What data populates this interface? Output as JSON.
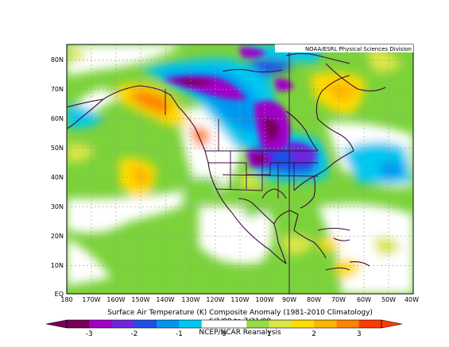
{
  "map": {
    "credit": "NOAA/ESRL Physical Sciences Division",
    "title": "Surface Air Temperature (K) Composite Anomaly (1981-2010 Climatology)",
    "date_range": "6/1/09 to 7/31/09",
    "source": "NCEP/NCAR Reanalysis",
    "lat_ticks": [
      "EQ",
      "10N",
      "20N",
      "30N",
      "40N",
      "50N",
      "60N",
      "70N",
      "80N"
    ],
    "lon_ticks": [
      "180",
      "170W",
      "160W",
      "150W",
      "140W",
      "130W",
      "120W",
      "110W",
      "100W",
      "90W",
      "80W",
      "70W",
      "60W",
      "50W",
      "40W"
    ],
    "colorbar": {
      "labels": [
        "-3",
        "-2",
        "-1",
        "0",
        "1",
        "2",
        "3"
      ],
      "colors": [
        "#78005a",
        "#a000c8",
        "#6e28dc",
        "#1e50e6",
        "#0096f0",
        "#00c8f0",
        "#ffffff",
        "#ffffff",
        "#96dc46",
        "#dce646",
        "#ffdc00",
        "#ffb400",
        "#ff8200",
        "#ff3c00"
      ]
    }
  },
  "chart_data": {
    "type": "heatmap",
    "title": "Surface Air Temperature (K) Composite Anomaly (1981-2010 Climatology)",
    "subtitle": "6/1/09 to 7/31/09",
    "xlabel": "",
    "ylabel": "",
    "xlim": [
      -180,
      -40
    ],
    "ylim": [
      0,
      85
    ],
    "color_range": [
      -3,
      3
    ],
    "units": "K",
    "regions": [
      {
        "lon": [
          -160,
          -135
        ],
        "lat": [
          65,
          75
        ],
        "value": -2.5
      },
      {
        "lon": [
          -120,
          -100
        ],
        "lat": [
          68,
          76
        ],
        "value": -2.0
      },
      {
        "lon": [
          -105,
          -85
        ],
        "lat": [
          50,
          62
        ],
        "value": -2.5
      },
      {
        "lon": [
          -100,
          -80
        ],
        "lat": [
          42,
          50
        ],
        "value": -2.0
      },
      {
        "lon": [
          -160,
          -140
        ],
        "lat": [
          55,
          66
        ],
        "value": 2.0
      },
      {
        "lon": [
          -125,
          -118
        ],
        "lat": [
          48,
          55
        ],
        "value": 2.0
      },
      {
        "lon": [
          -85,
          -65
        ],
        "lat": [
          60,
          72
        ],
        "value": 2.0
      },
      {
        "lon": [
          -150,
          -140
        ],
        "lat": [
          36,
          44
        ],
        "value": 1.5
      },
      {
        "lon": [
          -178,
          -165
        ],
        "lat": [
          58,
          66
        ],
        "value": -1.5
      },
      {
        "lon": [
          -170,
          -155
        ],
        "lat": [
          38,
          48
        ],
        "value": 1.0
      },
      {
        "lon": [
          -60,
          -45
        ],
        "lat": [
          28,
          38
        ],
        "value": -1.5
      },
      {
        "lon": [
          -175,
          -130
        ],
        "lat": [
          0,
          15
        ],
        "value": 1.0
      },
      {
        "lon": [
          -85,
          -60
        ],
        "lat": [
          0,
          10
        ],
        "value": 1.5
      }
    ]
  }
}
